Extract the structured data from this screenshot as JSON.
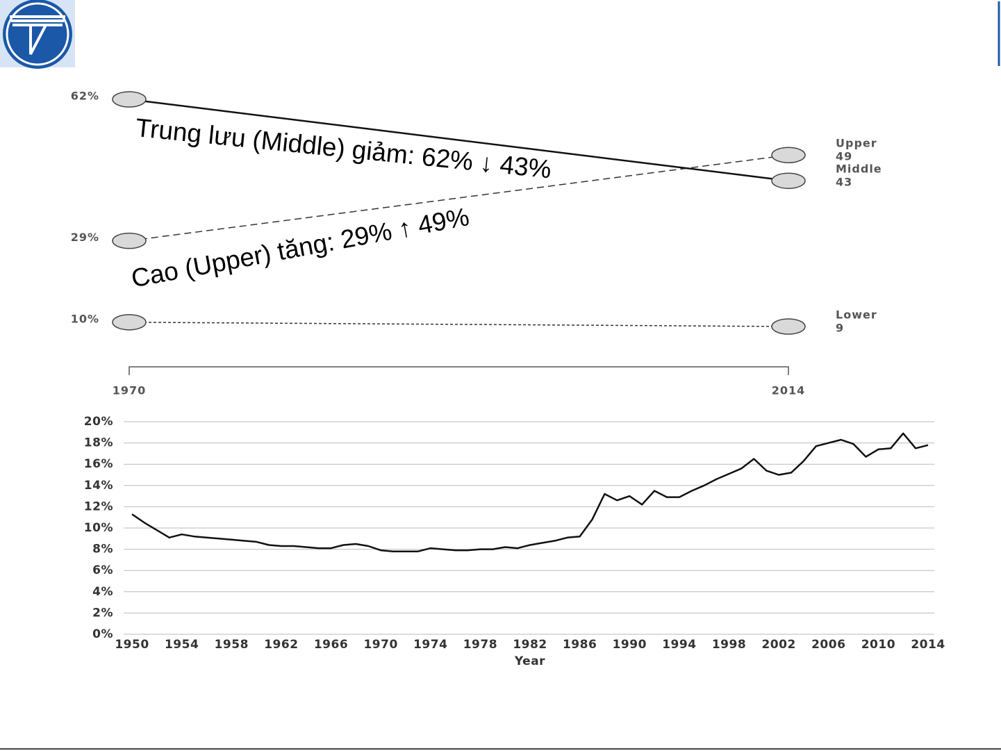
{
  "chart_data": [
    {
      "type": "slope",
      "x": [
        "1970",
        "2014"
      ],
      "series": [
        {
          "name": "Upper",
          "values": [
            29,
            49
          ],
          "value_labels": [
            "29%",
            "49"
          ],
          "dash": "dashed",
          "color": "#333333"
        },
        {
          "name": "Middle",
          "values": [
            62,
            43
          ],
          "value_labels": [
            "62%",
            "43"
          ],
          "dash": "solid",
          "color": "#111111"
        },
        {
          "name": "Lower",
          "values": [
            10,
            9
          ],
          "value_labels": [
            "10%",
            "9"
          ],
          "dash": "dotted",
          "color": "#333333"
        }
      ],
      "annotations": [
        "Trung lưu (Middle) giảm: 62% ↓ 43%",
        "Cao (Upper) tăng: 29% ↑ 49%"
      ]
    },
    {
      "type": "line",
      "xlabel": "Year",
      "x": [
        1950,
        1951,
        1952,
        1953,
        1954,
        1955,
        1956,
        1957,
        1958,
        1959,
        1960,
        1961,
        1962,
        1963,
        1964,
        1965,
        1966,
        1967,
        1968,
        1969,
        1970,
        1971,
        1972,
        1973,
        1974,
        1975,
        1976,
        1977,
        1978,
        1979,
        1980,
        1981,
        1982,
        1983,
        1984,
        1985,
        1986,
        1987,
        1988,
        1989,
        1990,
        1991,
        1992,
        1993,
        1994,
        1995,
        1996,
        1997,
        1998,
        1999,
        2000,
        2001,
        2002,
        2003,
        2004,
        2005,
        2006,
        2007,
        2008,
        2009,
        2010,
        2011,
        2012,
        2013,
        2014
      ],
      "values": [
        11.3,
        10.5,
        9.8,
        9.1,
        9.4,
        9.2,
        9.1,
        9.0,
        8.9,
        8.8,
        8.7,
        8.4,
        8.3,
        8.3,
        8.2,
        8.1,
        8.1,
        8.4,
        8.5,
        8.3,
        7.9,
        7.8,
        7.8,
        7.8,
        8.1,
        8.0,
        7.9,
        7.9,
        8.0,
        8.0,
        8.2,
        8.1,
        8.4,
        8.6,
        8.8,
        9.1,
        9.2,
        10.8,
        13.2,
        12.6,
        13.0,
        12.2,
        13.5,
        12.9,
        12.9,
        13.5,
        14.0,
        14.6,
        15.1,
        15.6,
        16.5,
        15.4,
        15.0,
        15.2,
        16.3,
        17.7,
        18.0,
        18.3,
        17.9,
        16.7,
        17.4,
        17.5,
        18.9,
        17.5,
        17.8
      ],
      "color": "#111111",
      "xlim": [
        1950,
        2014
      ],
      "xticks": [
        1950,
        1954,
        1958,
        1962,
        1966,
        1970,
        1974,
        1978,
        1982,
        1986,
        1990,
        1994,
        1998,
        2002,
        2006,
        2010,
        2014
      ],
      "ylim": [
        0,
        20
      ],
      "yticks": [
        {
          "value": 0,
          "label": "0%"
        },
        {
          "value": 2,
          "label": "2%"
        },
        {
          "value": 4,
          "label": "4%"
        },
        {
          "value": 6,
          "label": "6%"
        },
        {
          "value": 8,
          "label": "8%"
        },
        {
          "value": 10,
          "label": "10%"
        },
        {
          "value": 12,
          "label": "12%"
        },
        {
          "value": 14,
          "label": "14%"
        },
        {
          "value": 16,
          "label": "16%"
        },
        {
          "value": 18,
          "label": "18%"
        },
        {
          "value": 20,
          "label": "20%"
        }
      ],
      "grid": true
    }
  ]
}
